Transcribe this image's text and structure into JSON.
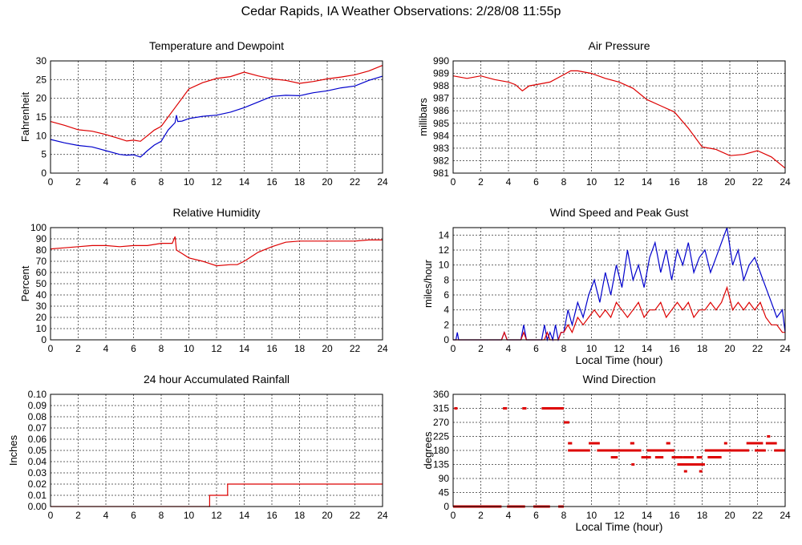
{
  "title": "Cedar Rapids, IA Weather Observations: 2/28/08 11:55p",
  "colors": {
    "grid": "#666666",
    "red": "#dd0000",
    "blue": "#0000cc",
    "frame": "#000000"
  },
  "chart_data": [
    {
      "id": "temp",
      "type": "line",
      "title": "Temperature and Dewpoint",
      "xlabel": "",
      "ylabel": "Fahrenheit",
      "xlim": [
        0,
        24
      ],
      "ylim": [
        0,
        30
      ],
      "xticks": [
        0,
        2,
        4,
        6,
        8,
        10,
        12,
        14,
        16,
        18,
        20,
        22,
        24
      ],
      "yticks": [
        0,
        5,
        10,
        15,
        20,
        25,
        30
      ],
      "series": [
        {
          "color": "#dd0000",
          "x": [
            0,
            1,
            2,
            3,
            4,
            5,
            5.5,
            6,
            6.5,
            7,
            7.5,
            8,
            8.5,
            9,
            9.5,
            10,
            11,
            12,
            13,
            14,
            15,
            16,
            17,
            18,
            19,
            20,
            21,
            22,
            23,
            24
          ],
          "y": [
            13.8,
            12.8,
            11.6,
            11.2,
            10.3,
            9.2,
            8.6,
            8.8,
            8.5,
            10.0,
            11.5,
            12.5,
            15.0,
            17.5,
            20.0,
            22.5,
            24.2,
            25.3,
            25.8,
            27.0,
            26.0,
            25.2,
            24.8,
            24.0,
            24.5,
            25.2,
            25.7,
            26.3,
            27.3,
            28.8
          ]
        },
        {
          "color": "#0000cc",
          "x": [
            0,
            1,
            2,
            3,
            4,
            5,
            5.5,
            6,
            6.5,
            7,
            7.5,
            8,
            8.5,
            9,
            9.1,
            9.2,
            9.5,
            10,
            11,
            12,
            13,
            14,
            15,
            16,
            17,
            18,
            19,
            20,
            21,
            22,
            23,
            24
          ],
          "y": [
            9.0,
            8.1,
            7.4,
            7.0,
            6.0,
            5.0,
            4.8,
            4.9,
            4.3,
            6.0,
            7.5,
            8.5,
            11.5,
            13.5,
            15.5,
            13.8,
            13.9,
            14.6,
            15.2,
            15.5,
            16.3,
            17.5,
            19.0,
            20.5,
            20.8,
            20.7,
            21.5,
            22.0,
            22.8,
            23.3,
            24.8,
            25.9
          ]
        }
      ]
    },
    {
      "id": "pressure",
      "type": "line",
      "title": "Air Pressure",
      "xlabel": "",
      "ylabel": "millibars",
      "xlim": [
        0,
        24
      ],
      "ylim": [
        981,
        990
      ],
      "xticks": [
        0,
        2,
        4,
        6,
        8,
        10,
        12,
        14,
        16,
        18,
        20,
        22,
        24
      ],
      "yticks": [
        981,
        982,
        983,
        984,
        985,
        986,
        987,
        988,
        989,
        990
      ],
      "series": [
        {
          "color": "#dd0000",
          "x": [
            0,
            1,
            2,
            3,
            4,
            4.5,
            5,
            5.5,
            6,
            7,
            8,
            8.5,
            9,
            9.5,
            10,
            11,
            12,
            13,
            14,
            15,
            16,
            17,
            18,
            19,
            20,
            21,
            22,
            23,
            24
          ],
          "y": [
            988.8,
            988.6,
            988.8,
            988.5,
            988.3,
            988.1,
            987.6,
            988.0,
            988.1,
            988.3,
            988.9,
            989.2,
            989.2,
            989.1,
            989.0,
            988.6,
            988.3,
            987.8,
            986.9,
            986.4,
            985.9,
            984.6,
            983.1,
            982.9,
            982.4,
            982.5,
            982.8,
            982.3,
            981.4
          ]
        }
      ]
    },
    {
      "id": "humidity",
      "type": "line",
      "title": "Relative Humidity",
      "xlabel": "",
      "ylabel": "Percent",
      "xlim": [
        0,
        24
      ],
      "ylim": [
        0,
        100
      ],
      "xticks": [
        0,
        2,
        4,
        6,
        8,
        10,
        12,
        14,
        16,
        18,
        20,
        22,
        24
      ],
      "yticks": [
        0,
        10,
        20,
        30,
        40,
        50,
        60,
        70,
        80,
        90,
        100
      ],
      "series": [
        {
          "color": "#dd0000",
          "x": [
            0,
            1,
            2,
            3,
            4,
            5,
            6,
            7,
            8,
            8.8,
            9,
            9.1,
            9.5,
            10,
            11,
            11.5,
            12,
            13,
            13.5,
            14,
            15,
            16,
            17,
            18,
            19,
            20,
            21,
            22,
            23,
            24
          ],
          "y": [
            81,
            82,
            83,
            84,
            84,
            83,
            84,
            84,
            86,
            86,
            92,
            80,
            77,
            73,
            70,
            68,
            66,
            67,
            67,
            70,
            78,
            83,
            87,
            88,
            88,
            88,
            88,
            88,
            89,
            89
          ]
        }
      ]
    },
    {
      "id": "wind",
      "type": "line",
      "title": "Wind Speed and Peak Gust",
      "xlabel": "Local Time (hour)",
      "ylabel": "miles/hour",
      "xlim": [
        0,
        24
      ],
      "ylim": [
        0,
        15
      ],
      "xticks": [
        0,
        2,
        4,
        6,
        8,
        10,
        12,
        14,
        16,
        18,
        20,
        22,
        24
      ],
      "yticks": [
        0,
        2,
        4,
        6,
        8,
        10,
        12,
        14
      ],
      "series": [
        {
          "color": "#0000cc",
          "x": [
            0,
            0.2,
            0.3,
            0.4,
            0.6,
            3.5,
            3.7,
            3.9,
            4.9,
            5.1,
            5.3,
            6.4,
            6.6,
            6.8,
            7,
            7.2,
            7.4,
            7.6,
            7.8,
            8,
            8.3,
            8.6,
            9,
            9.4,
            9.8,
            10.2,
            10.6,
            11,
            11.4,
            11.8,
            12.2,
            12.6,
            13,
            13.4,
            13.8,
            14.2,
            14.6,
            15,
            15.4,
            15.8,
            16.2,
            16.6,
            17,
            17.4,
            17.8,
            18.2,
            18.6,
            19,
            19.4,
            19.8,
            20.2,
            20.6,
            21,
            21.4,
            21.8,
            22.2,
            22.6,
            23,
            23.4,
            23.8,
            24
          ],
          "y": [
            0,
            0,
            1,
            0,
            0,
            0,
            1,
            0,
            0,
            2,
            0,
            0,
            2,
            0,
            1,
            0,
            2,
            0,
            1,
            1,
            4,
            2,
            5,
            3,
            6,
            8,
            5,
            9,
            6,
            10,
            7,
            12,
            8,
            10,
            7,
            11,
            13,
            9,
            12,
            8,
            12,
            10,
            13,
            9,
            11,
            12,
            9,
            11,
            13,
            15,
            10,
            12,
            8,
            10,
            11,
            9,
            7,
            5,
            3,
            4,
            1
          ]
        },
        {
          "color": "#dd0000",
          "x": [
            0,
            3.5,
            3.7,
            3.9,
            4.9,
            5.1,
            5.3,
            6.6,
            6.8,
            7,
            7.6,
            7.8,
            8,
            8.3,
            8.6,
            9,
            9.4,
            9.8,
            10.2,
            10.6,
            11,
            11.4,
            11.8,
            12.2,
            12.6,
            13,
            13.4,
            13.8,
            14.2,
            14.6,
            15,
            15.4,
            15.8,
            16.2,
            16.6,
            17,
            17.4,
            17.8,
            18.2,
            18.6,
            19,
            19.4,
            19.8,
            20.2,
            20.6,
            21,
            21.4,
            21.8,
            22.2,
            22.6,
            23,
            23.4,
            23.8,
            24
          ],
          "y": [
            0,
            0,
            1,
            0,
            0,
            1,
            0,
            0,
            1,
            0,
            0,
            1,
            1,
            2,
            1,
            3,
            2,
            3,
            4,
            3,
            4,
            3,
            5,
            4,
            3,
            4,
            5,
            3,
            4,
            4,
            5,
            3,
            4,
            5,
            4,
            5,
            3,
            4,
            4,
            5,
            4,
            5,
            7,
            4,
            5,
            4,
            5,
            4,
            5,
            3,
            2,
            2,
            1,
            1
          ]
        }
      ]
    },
    {
      "id": "rain",
      "type": "line",
      "title": "24 hour Accumulated Rainfall",
      "xlabel": "",
      "ylabel": "Inches",
      "xlim": [
        0,
        24
      ],
      "ylim": [
        0,
        0.1
      ],
      "xticks": [
        0,
        2,
        4,
        6,
        8,
        10,
        12,
        14,
        16,
        18,
        20,
        22,
        24
      ],
      "yticks": [
        "0.00",
        "0.01",
        "0.02",
        "0.03",
        "0.04",
        "0.05",
        "0.06",
        "0.07",
        "0.08",
        "0.09",
        "0.10"
      ],
      "series": [
        {
          "color": "#dd0000",
          "x": [
            0,
            11.5,
            11.5,
            12.8,
            12.8,
            24
          ],
          "y": [
            0,
            0,
            0.01,
            0.01,
            0.02,
            0.02
          ]
        }
      ]
    },
    {
      "id": "direction",
      "type": "scatter",
      "title": "Wind Direction",
      "xlabel": "Local Time (hour)",
      "ylabel": "degrees",
      "xlim": [
        0,
        24
      ],
      "ylim": [
        0,
        360
      ],
      "xticks": [
        0,
        2,
        4,
        6,
        8,
        10,
        12,
        14,
        16,
        18,
        20,
        22,
        24
      ],
      "yticks": [
        0,
        45,
        90,
        135,
        180,
        225,
        270,
        315,
        360
      ],
      "segments": [
        {
          "x0": 0,
          "x1": 3.5,
          "y": 0
        },
        {
          "x0": 3.9,
          "x1": 5.2,
          "y": 0
        },
        {
          "x0": 5.8,
          "x1": 7.0,
          "y": 0
        },
        {
          "x0": 7.6,
          "x1": 8.0,
          "y": 0
        },
        {
          "x0": 3.6,
          "x1": 3.9,
          "y": 315
        },
        {
          "x0": 5.0,
          "x1": 5.3,
          "y": 315
        },
        {
          "x0": 6.4,
          "x1": 8.0,
          "y": 315
        },
        {
          "x0": 8.0,
          "x1": 8.4,
          "y": 270
        },
        {
          "x0": 8.3,
          "x1": 8.6,
          "y": 203
        },
        {
          "x0": 8.3,
          "x1": 9.9,
          "y": 180
        },
        {
          "x0": 9.8,
          "x1": 10.6,
          "y": 203
        },
        {
          "x0": 10.4,
          "x1": 13.6,
          "y": 180
        },
        {
          "x0": 11.4,
          "x1": 11.9,
          "y": 158
        },
        {
          "x0": 12.8,
          "x1": 13.1,
          "y": 203
        },
        {
          "x0": 13.6,
          "x1": 14.3,
          "y": 158
        },
        {
          "x0": 14.0,
          "x1": 16.0,
          "y": 180
        },
        {
          "x0": 14.6,
          "x1": 15.2,
          "y": 158
        },
        {
          "x0": 15.4,
          "x1": 15.7,
          "y": 203
        },
        {
          "x0": 15.8,
          "x1": 16.6,
          "y": 158
        },
        {
          "x0": 16.2,
          "x1": 18.2,
          "y": 135
        },
        {
          "x0": 16.6,
          "x1": 17.4,
          "y": 158
        },
        {
          "x0": 17.6,
          "x1": 18.0,
          "y": 158
        },
        {
          "x0": 18.4,
          "x1": 19.4,
          "y": 158
        },
        {
          "x0": 18.2,
          "x1": 21.4,
          "y": 180
        },
        {
          "x0": 21.2,
          "x1": 22.4,
          "y": 203
        },
        {
          "x0": 21.8,
          "x1": 22.6,
          "y": 180
        },
        {
          "x0": 22.6,
          "x1": 23.4,
          "y": 203
        },
        {
          "x0": 23.2,
          "x1": 24.0,
          "y": 180
        }
      ],
      "points": [
        {
          "x": 0.2,
          "y": 315
        },
        {
          "x": 13.0,
          "y": 135
        },
        {
          "x": 16.8,
          "y": 113
        },
        {
          "x": 17.9,
          "y": 113
        },
        {
          "x": 19.7,
          "y": 203
        },
        {
          "x": 22.8,
          "y": 225
        }
      ]
    }
  ]
}
